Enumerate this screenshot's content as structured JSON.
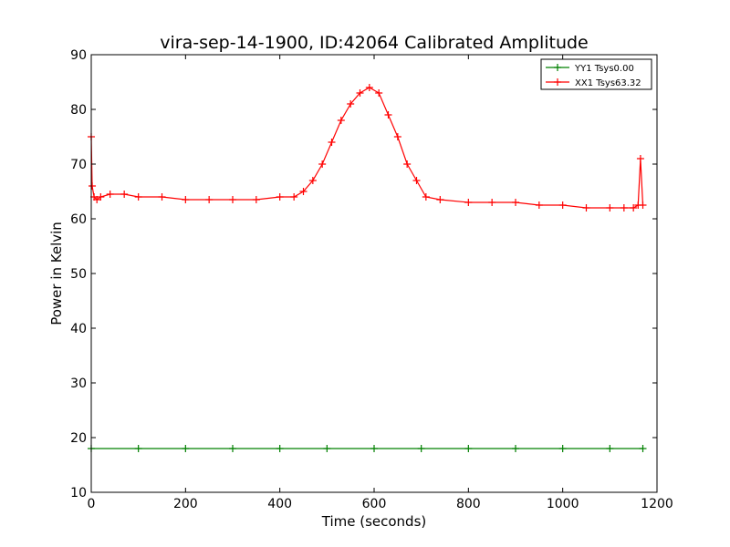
{
  "chart_data": {
    "type": "line",
    "title": "vira-sep-14-1900, ID:42064 Calibrated Amplitude",
    "xlabel": "Time (seconds)",
    "ylabel": "Power in Kelvin",
    "xlim": [
      0,
      1200
    ],
    "ylim": [
      10,
      90
    ],
    "x_ticks": [
      0,
      200,
      400,
      600,
      800,
      1000,
      1200
    ],
    "y_ticks": [
      10,
      20,
      30,
      40,
      50,
      60,
      70,
      80,
      90
    ],
    "grid": false,
    "legend_position": "top-right",
    "marker": "+",
    "series": [
      {
        "name": "YY1 Tsys0.00",
        "color": "#008000",
        "x": [
          0,
          100,
          200,
          300,
          400,
          500,
          600,
          700,
          800,
          900,
          1000,
          1100,
          1170
        ],
        "y": [
          18,
          18,
          18,
          18,
          18,
          18,
          18,
          18,
          18,
          18,
          18,
          18,
          18
        ]
      },
      {
        "name": "XX1 Tsys63.32",
        "color": "#ff0000",
        "x": [
          0,
          2,
          6,
          12,
          20,
          40,
          70,
          100,
          150,
          200,
          250,
          300,
          350,
          400,
          430,
          450,
          470,
          490,
          510,
          530,
          550,
          570,
          590,
          610,
          630,
          650,
          670,
          690,
          710,
          740,
          800,
          850,
          900,
          950,
          1000,
          1050,
          1100,
          1130,
          1150,
          1160,
          1165,
          1170
        ],
        "y": [
          75,
          66,
          64,
          63.5,
          64,
          64.5,
          64.5,
          64,
          64,
          63.5,
          63.5,
          63.5,
          63.5,
          64,
          64,
          65,
          67,
          70,
          74,
          78,
          81,
          83,
          84,
          83,
          79,
          75,
          70,
          67,
          64,
          63.5,
          63,
          63,
          63,
          62.5,
          62.5,
          62,
          62,
          62,
          62,
          62.5,
          71,
          62.5
        ]
      }
    ]
  }
}
